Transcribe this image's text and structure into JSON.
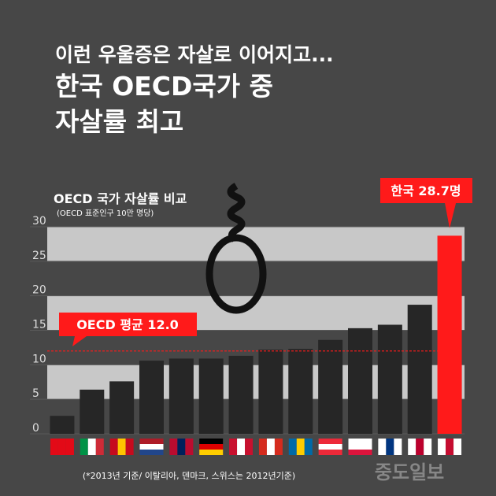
{
  "chart_data": {
    "type": "bar",
    "headline": [
      "이런 우울증은 자살로 이어지고...",
      "한국 OECD국가 중",
      "자살률 최고"
    ],
    "title": "OECD 국가 자살률 비교",
    "subtitle": "(OECD 표준인구 10만 명당)",
    "categories": [
      null,
      null,
      null,
      null,
      null,
      null,
      null,
      null,
      null,
      null,
      null,
      null,
      null,
      null
    ],
    "values": [
      2.6,
      6.4,
      7.6,
      10.6,
      10.9,
      10.9,
      11.3,
      12.2,
      12.3,
      13.6,
      15.3,
      15.8,
      18.7,
      28.7
    ],
    "colors": [
      "#262626",
      "#262626",
      "#262626",
      "#262626",
      "#262626",
      "#262626",
      "#262626",
      "#262626",
      "#262626",
      "#262626",
      "#262626",
      "#262626",
      "#262626",
      "#ff1a1a"
    ],
    "ylim": [
      0,
      30
    ],
    "yticks": [
      0,
      5,
      10,
      15,
      20,
      25,
      30
    ],
    "average": 12.0,
    "annotations": [
      "OECD 평균 12.0",
      "한국 28.7명"
    ],
    "footnote": "(*2013년 기준/ 이탈리아, 덴마크, 스위스는  2012년기준)",
    "watermark": "중도일보"
  }
}
